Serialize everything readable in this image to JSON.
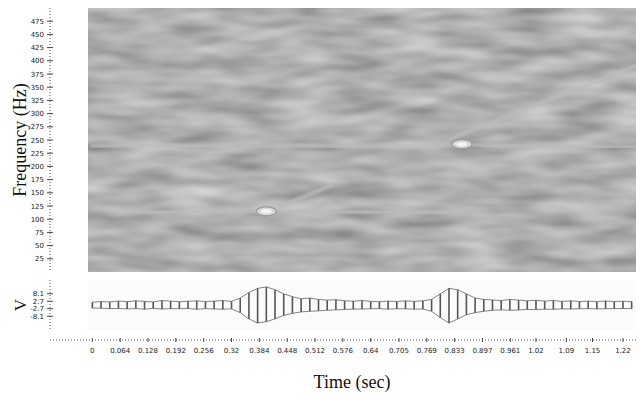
{
  "chart_data": [
    {
      "type": "line",
      "y_label": "Frequency (Hz)",
      "xlim": [
        -0.01,
        1.25
      ],
      "ylim": [
        0,
        500
      ],
      "yticks": [
        25,
        50,
        75,
        100,
        125,
        150,
        175,
        200,
        225,
        250,
        275,
        300,
        325,
        350,
        375,
        400,
        425,
        450,
        475
      ],
      "tick_labels": "y",
      "grid": false,
      "x": [
        0,
        0.05,
        0.1,
        0.15,
        0.2,
        0.25,
        0.3,
        0.35,
        0.4,
        0.45,
        0.5,
        0.55,
        0.6,
        0.65,
        0.7,
        0.75,
        0.8,
        0.85,
        0.9,
        0.95,
        1.0,
        1.05,
        1.1,
        1.15,
        1.2,
        1.25
      ],
      "series": [
        {
          "type": "line",
          "color": "#bcbcbc",
          "values": [
            null,
            null,
            112,
            113,
            114,
            114,
            115,
            115,
            115,
            114,
            114,
            113,
            113,
            113,
            113,
            112,
            112,
            112,
            null,
            null,
            null,
            null,
            null,
            null,
            null,
            null
          ]
        },
        {
          "type": "line",
          "color": "#bcbcbc",
          "values": [
            null,
            null,
            null,
            null,
            null,
            null,
            null,
            null,
            115,
            130,
            147,
            164,
            null,
            null,
            null,
            null,
            null,
            null,
            null,
            null,
            null,
            null,
            null,
            null,
            null,
            null
          ]
        },
        {
          "type": "line",
          "color": "#bcbcbc",
          "values": [
            238,
            239,
            240,
            240,
            239,
            238,
            238,
            238,
            238,
            239,
            239,
            238,
            238,
            238,
            238,
            238,
            240,
            241,
            240,
            239,
            238,
            238,
            237,
            237,
            237,
            237
          ]
        },
        {
          "type": "line",
          "color": "#bcbcbc",
          "values": [
            null,
            null,
            null,
            null,
            null,
            null,
            null,
            null,
            null,
            null,
            null,
            null,
            null,
            null,
            null,
            null,
            240,
            262,
            277,
            294,
            310,
            326,
            342,
            358,
            375,
            390
          ]
        },
        {
          "type": "scatter",
          "marker": "circle",
          "color": "#f4f4f4",
          "values": [
            null,
            null,
            null,
            null,
            null,
            null,
            null,
            null,
            115,
            null,
            null,
            null,
            null,
            null,
            null,
            null,
            null,
            242,
            null,
            null,
            null,
            null,
            null,
            null,
            null,
            null
          ]
        }
      ]
    },
    {
      "type": "area",
      "y_label": "V",
      "x_label": "Time (sec)",
      "xlim": [
        -0.01,
        1.25
      ],
      "ylim": [
        -18,
        18
      ],
      "yticks": [
        -8.1,
        -2.7,
        2.7,
        8.1
      ],
      "xticks": [
        0,
        0.064,
        0.128,
        0.192,
        0.256,
        0.32,
        0.384,
        0.448,
        0.512,
        0.576,
        0.64,
        0.705,
        0.769,
        0.833,
        0.897,
        0.961,
        1.02,
        1.09,
        1.15,
        1.22
      ],
      "tick_labels": true,
      "grid": false,
      "x": [
        0,
        0.02,
        0.04,
        0.06,
        0.08,
        0.1,
        0.12,
        0.14,
        0.16,
        0.18,
        0.2,
        0.22,
        0.24,
        0.26,
        0.28,
        0.3,
        0.32,
        0.34,
        0.36,
        0.38,
        0.4,
        0.42,
        0.44,
        0.46,
        0.48,
        0.5,
        0.52,
        0.54,
        0.56,
        0.58,
        0.6,
        0.62,
        0.64,
        0.66,
        0.68,
        0.7,
        0.72,
        0.74,
        0.76,
        0.78,
        0.8,
        0.82,
        0.84,
        0.86,
        0.88,
        0.9,
        0.92,
        0.94,
        0.96,
        0.98,
        1.0,
        1.02,
        1.04,
        1.06,
        1.08,
        1.1,
        1.12,
        1.14,
        1.16,
        1.18,
        1.2,
        1.22,
        1.24
      ],
      "series": [
        {
          "type": "line",
          "color": "#555555",
          "values": [
            2.0,
            2.5,
            2.2,
            2.8,
            2.4,
            3.0,
            2.6,
            2.2,
            3.2,
            2.8,
            2.4,
            2.7,
            3.0,
            2.5,
            2.8,
            3.2,
            2.6,
            5.0,
            9.0,
            12.0,
            13.0,
            11.0,
            8.0,
            6.0,
            4.5,
            5.0,
            4.0,
            3.5,
            3.8,
            3.0,
            2.8,
            3.2,
            2.6,
            2.4,
            2.8,
            2.5,
            3.0,
            2.6,
            3.0,
            4.0,
            8.0,
            12.0,
            11.0,
            8.0,
            5.0,
            4.0,
            3.6,
            3.2,
            4.0,
            3.5,
            3.0,
            3.4,
            2.8,
            3.2,
            2.6,
            3.0,
            2.5,
            2.8,
            2.4,
            2.9,
            2.5,
            2.7,
            2.4
          ]
        },
        {
          "type": "line",
          "color": "#555555",
          "values": [
            -2.2,
            -2.3,
            -2.6,
            -2.5,
            -2.8,
            -2.6,
            -3.0,
            -2.4,
            -2.9,
            -2.6,
            -2.7,
            -2.5,
            -3.1,
            -2.6,
            -2.9,
            -3.0,
            -2.8,
            -5.5,
            -10.0,
            -13.0,
            -12.0,
            -10.0,
            -7.5,
            -6.0,
            -5.0,
            -4.5,
            -4.2,
            -3.8,
            -3.5,
            -3.2,
            -3.0,
            -2.9,
            -2.7,
            -2.6,
            -3.0,
            -2.7,
            -2.8,
            -3.0,
            -2.9,
            -4.5,
            -9.0,
            -13.0,
            -10.0,
            -7.0,
            -5.5,
            -4.5,
            -3.8,
            -3.5,
            -3.8,
            -3.6,
            -3.2,
            -3.3,
            -3.0,
            -3.1,
            -2.8,
            -2.9,
            -2.7,
            -2.6,
            -2.8,
            -2.7,
            -2.6,
            -2.5,
            -2.6
          ]
        }
      ]
    }
  ]
}
